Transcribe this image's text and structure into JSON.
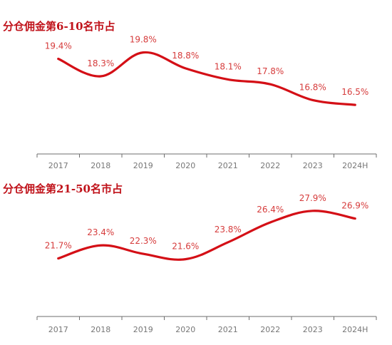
{
  "colors": {
    "line": "#d40f16",
    "label": "#d63c3c",
    "title": "#c0121a",
    "axis": "#6e6e6e",
    "tick": "#777777"
  },
  "chart_data": [
    {
      "type": "line",
      "title": "分仓佣金第6-10名市占",
      "categories": [
        "2017",
        "2018",
        "2019",
        "2020",
        "2021",
        "2022",
        "2023",
        "2024H"
      ],
      "series": [
        {
          "values": [
            19.4,
            18.3,
            19.8,
            18.8,
            18.1,
            17.8,
            16.8,
            16.5
          ],
          "labels": [
            "19.4%",
            "18.3%",
            "19.8%",
            "18.8%",
            "18.1%",
            "17.8%",
            "16.8%",
            "16.5%"
          ]
        }
      ],
      "ylim": [
        13.5,
        20.5
      ],
      "grid": false,
      "legend": "none"
    },
    {
      "type": "line",
      "title": "分仓佣金第21-50名市占",
      "categories": [
        "2017",
        "2018",
        "2019",
        "2020",
        "2021",
        "2022",
        "2023",
        "2024H"
      ],
      "series": [
        {
          "values": [
            21.7,
            23.4,
            22.3,
            21.6,
            23.8,
            26.4,
            27.9,
            26.9
          ],
          "labels": [
            "21.7%",
            "23.4%",
            "22.3%",
            "21.6%",
            "23.8%",
            "26.4%",
            "27.9%",
            "26.9%"
          ]
        }
      ],
      "ylim": [
        14.5,
        29.0
      ],
      "grid": false,
      "legend": "none"
    }
  ]
}
